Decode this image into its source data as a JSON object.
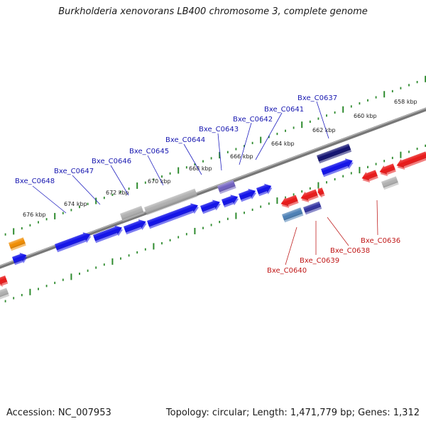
{
  "header": {
    "title": "Burkholderia xenovorans LB400 chromosome 3, complete genome"
  },
  "footer": {
    "accession": "Accession: NC_007953",
    "summary": "Topology: circular; Length: 1,471,779 bp; Genes: 1,312"
  },
  "colors": {
    "backbone": "#777777",
    "tick": "#2e8b2e",
    "forward_gene": "#1010e8",
    "reverse_gene": "#e81818",
    "pseudo_gene": "#b0b0b0",
    "other_gene": "#f08c00",
    "dark_gene": "#101070",
    "violet_gene": "#7060c0",
    "steel_gene": "#4a7fb5",
    "forward_label": "#1818b0",
    "reverse_label": "#c01818"
  },
  "scale": {
    "unit": "kbp",
    "labels": [
      "658 kbp",
      "660 kbp",
      "662 kbp",
      "664 kbp",
      "666 kbp",
      "668 kbp",
      "670 kbp",
      "672 kbp",
      "674 kbp",
      "676 kbp"
    ]
  },
  "genes": [
    {
      "label": "Bxe_C0648",
      "strand": "forward"
    },
    {
      "label": "Bxe_C0647",
      "strand": "forward"
    },
    {
      "label": "Bxe_C0646",
      "strand": "forward"
    },
    {
      "label": "Bxe_C0645",
      "strand": "forward"
    },
    {
      "label": "Bxe_C0644",
      "strand": "forward"
    },
    {
      "label": "Bxe_C0643",
      "strand": "forward"
    },
    {
      "label": "Bxe_C0642",
      "strand": "forward"
    },
    {
      "label": "Bxe_C0641",
      "strand": "forward"
    },
    {
      "label": "Bxe_C0637",
      "strand": "forward"
    },
    {
      "label": "Bxe_C0640",
      "strand": "reverse"
    },
    {
      "label": "Bxe_C0639",
      "strand": "reverse"
    },
    {
      "label": "Bxe_C0638",
      "strand": "reverse"
    },
    {
      "label": "Bxe_C0636",
      "strand": "reverse"
    }
  ]
}
